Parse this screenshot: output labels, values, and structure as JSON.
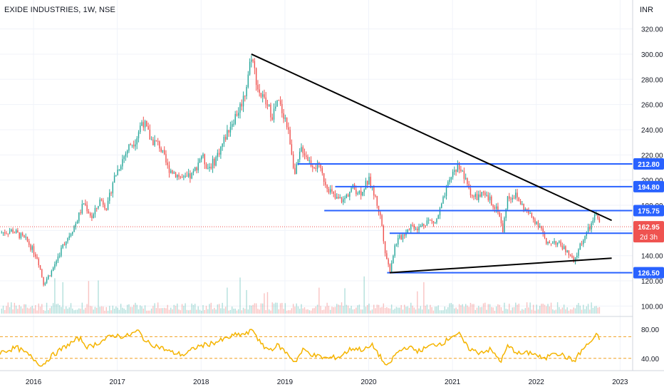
{
  "header": {
    "title": "EXIDE INDUSTRIES, 1W, NSE",
    "currency": "INR"
  },
  "chart_data": {
    "type": "candlestick",
    "symbol": "EXIDE INDUSTRIES",
    "interval": "1W",
    "exchange": "NSE",
    "currency": "INR",
    "ylim": [
      94,
      326
    ],
    "y_ticks": [
      100,
      120,
      140,
      160,
      180,
      200,
      220,
      240,
      260,
      280,
      300,
      320
    ],
    "y_tick_labels": [
      "100.00",
      "120.00",
      "140.00",
      "160.00",
      "180.00",
      "200.00",
      "220.00",
      "240.00",
      "260.00",
      "280.00",
      "300.00",
      "320.00"
    ],
    "x_ticks": [
      "2016",
      "2017",
      "2018",
      "2019",
      "2020",
      "2021",
      "2022",
      "2023"
    ],
    "x_range": [
      2015.6,
      2023.15
    ],
    "colors": {
      "up": "#26a69a",
      "down": "#ef5350",
      "lines": "#2962ff",
      "trend": "#000000",
      "rsi": "#f5b400",
      "rsi_band": "#f0a020"
    },
    "price_path": [
      [
        2015.6,
        158
      ],
      [
        2015.75,
        160
      ],
      [
        2015.92,
        152
      ],
      [
        2016.05,
        138
      ],
      [
        2016.12,
        118
      ],
      [
        2016.22,
        128
      ],
      [
        2016.35,
        148
      ],
      [
        2016.5,
        165
      ],
      [
        2016.6,
        182
      ],
      [
        2016.7,
        170
      ],
      [
        2016.8,
        185
      ],
      [
        2016.88,
        178
      ],
      [
        2016.95,
        200
      ],
      [
        2017.05,
        215
      ],
      [
        2017.15,
        228
      ],
      [
        2017.22,
        232
      ],
      [
        2017.3,
        248
      ],
      [
        2017.4,
        232
      ],
      [
        2017.5,
        228
      ],
      [
        2017.6,
        210
      ],
      [
        2017.7,
        205
      ],
      [
        2017.8,
        200
      ],
      [
        2017.9,
        204
      ],
      [
        2018.0,
        220
      ],
      [
        2018.08,
        210
      ],
      [
        2018.15,
        214
      ],
      [
        2018.25,
        228
      ],
      [
        2018.35,
        244
      ],
      [
        2018.45,
        256
      ],
      [
        2018.52,
        268
      ],
      [
        2018.6,
        300
      ],
      [
        2018.68,
        272
      ],
      [
        2018.76,
        262
      ],
      [
        2018.85,
        252
      ],
      [
        2018.92,
        262
      ],
      [
        2019.0,
        250
      ],
      [
        2019.06,
        232
      ],
      [
        2019.12,
        204
      ],
      [
        2019.2,
        226
      ],
      [
        2019.3,
        214
      ],
      [
        2019.4,
        210
      ],
      [
        2019.5,
        196
      ],
      [
        2019.6,
        185
      ],
      [
        2019.7,
        184
      ],
      [
        2019.8,
        194
      ],
      [
        2019.9,
        190
      ],
      [
        2020.0,
        200
      ],
      [
        2020.08,
        186
      ],
      [
        2020.15,
        168
      ],
      [
        2020.2,
        142
      ],
      [
        2020.25,
        128
      ],
      [
        2020.32,
        150
      ],
      [
        2020.4,
        156
      ],
      [
        2020.5,
        164
      ],
      [
        2020.6,
        162
      ],
      [
        2020.7,
        168
      ],
      [
        2020.8,
        166
      ],
      [
        2020.9,
        186
      ],
      [
        2021.0,
        206
      ],
      [
        2021.08,
        212
      ],
      [
        2021.15,
        200
      ],
      [
        2021.25,
        186
      ],
      [
        2021.35,
        188
      ],
      [
        2021.45,
        184
      ],
      [
        2021.55,
        176
      ],
      [
        2021.6,
        158
      ],
      [
        2021.65,
        186
      ],
      [
        2021.75,
        188
      ],
      [
        2021.85,
        178
      ],
      [
        2021.95,
        170
      ],
      [
        2022.05,
        164
      ],
      [
        2022.12,
        148
      ],
      [
        2022.2,
        152
      ],
      [
        2022.3,
        148
      ],
      [
        2022.4,
        140
      ],
      [
        2022.45,
        134
      ],
      [
        2022.52,
        148
      ],
      [
        2022.6,
        158
      ],
      [
        2022.67,
        166
      ],
      [
        2022.72,
        174
      ],
      [
        2022.76,
        163
      ]
    ],
    "last_price": {
      "value": 162.95,
      "label": "162.95",
      "countdown": "2d 3h"
    },
    "horizontal_levels": [
      {
        "value": 212.8,
        "label": "212.80",
        "x_start": 2019.15
      },
      {
        "value": 194.8,
        "label": "194.80",
        "x_start": 2019.6
      },
      {
        "value": 175.75,
        "label": "175.75",
        "x_start": 2019.47
      },
      {
        "value": 157.8,
        "label": "157.80",
        "x_start": 2020.25
      },
      {
        "value": 126.5,
        "label": "126.50",
        "x_start": 2020.22
      }
    ],
    "trendlines": [
      {
        "name": "falling",
        "from": [
          2018.6,
          300
        ],
        "to": [
          2022.9,
          168
        ]
      },
      {
        "name": "rising",
        "from": [
          2020.25,
          126.5
        ],
        "to": [
          2022.9,
          138
        ]
      }
    ],
    "rsi": {
      "ylim": [
        25,
        95
      ],
      "y_ticks": [
        40,
        80
      ],
      "y_tick_labels": [
        "40.00",
        "80.00"
      ],
      "bands": [
        70,
        40
      ],
      "path": [
        [
          2015.6,
          48
        ],
        [
          2015.8,
          55
        ],
        [
          2015.95,
          44
        ],
        [
          2016.1,
          30
        ],
        [
          2016.2,
          42
        ],
        [
          2016.4,
          58
        ],
        [
          2016.55,
          68
        ],
        [
          2016.65,
          55
        ],
        [
          2016.8,
          63
        ],
        [
          2016.95,
          72
        ],
        [
          2017.1,
          70
        ],
        [
          2017.25,
          78
        ],
        [
          2017.35,
          62
        ],
        [
          2017.5,
          56
        ],
        [
          2017.65,
          48
        ],
        [
          2017.8,
          45
        ],
        [
          2017.95,
          56
        ],
        [
          2018.1,
          60
        ],
        [
          2018.25,
          65
        ],
        [
          2018.4,
          72
        ],
        [
          2018.55,
          74
        ],
        [
          2018.62,
          80
        ],
        [
          2018.72,
          58
        ],
        [
          2018.82,
          52
        ],
        [
          2018.92,
          58
        ],
        [
          2019.05,
          44
        ],
        [
          2019.12,
          35
        ],
        [
          2019.22,
          52
        ],
        [
          2019.35,
          44
        ],
        [
          2019.5,
          40
        ],
        [
          2019.65,
          42
        ],
        [
          2019.8,
          54
        ],
        [
          2019.95,
          52
        ],
        [
          2020.05,
          58
        ],
        [
          2020.15,
          40
        ],
        [
          2020.22,
          27
        ],
        [
          2020.32,
          46
        ],
        [
          2020.45,
          56
        ],
        [
          2020.6,
          50
        ],
        [
          2020.75,
          58
        ],
        [
          2020.9,
          62
        ],
        [
          2021.0,
          72
        ],
        [
          2021.08,
          73
        ],
        [
          2021.18,
          55
        ],
        [
          2021.3,
          48
        ],
        [
          2021.45,
          52
        ],
        [
          2021.58,
          36
        ],
        [
          2021.66,
          57
        ],
        [
          2021.8,
          46
        ],
        [
          2021.95,
          48
        ],
        [
          2022.1,
          38
        ],
        [
          2022.2,
          50
        ],
        [
          2022.32,
          44
        ],
        [
          2022.45,
          36
        ],
        [
          2022.55,
          52
        ],
        [
          2022.65,
          63
        ],
        [
          2022.72,
          72
        ],
        [
          2022.76,
          66
        ]
      ]
    }
  }
}
